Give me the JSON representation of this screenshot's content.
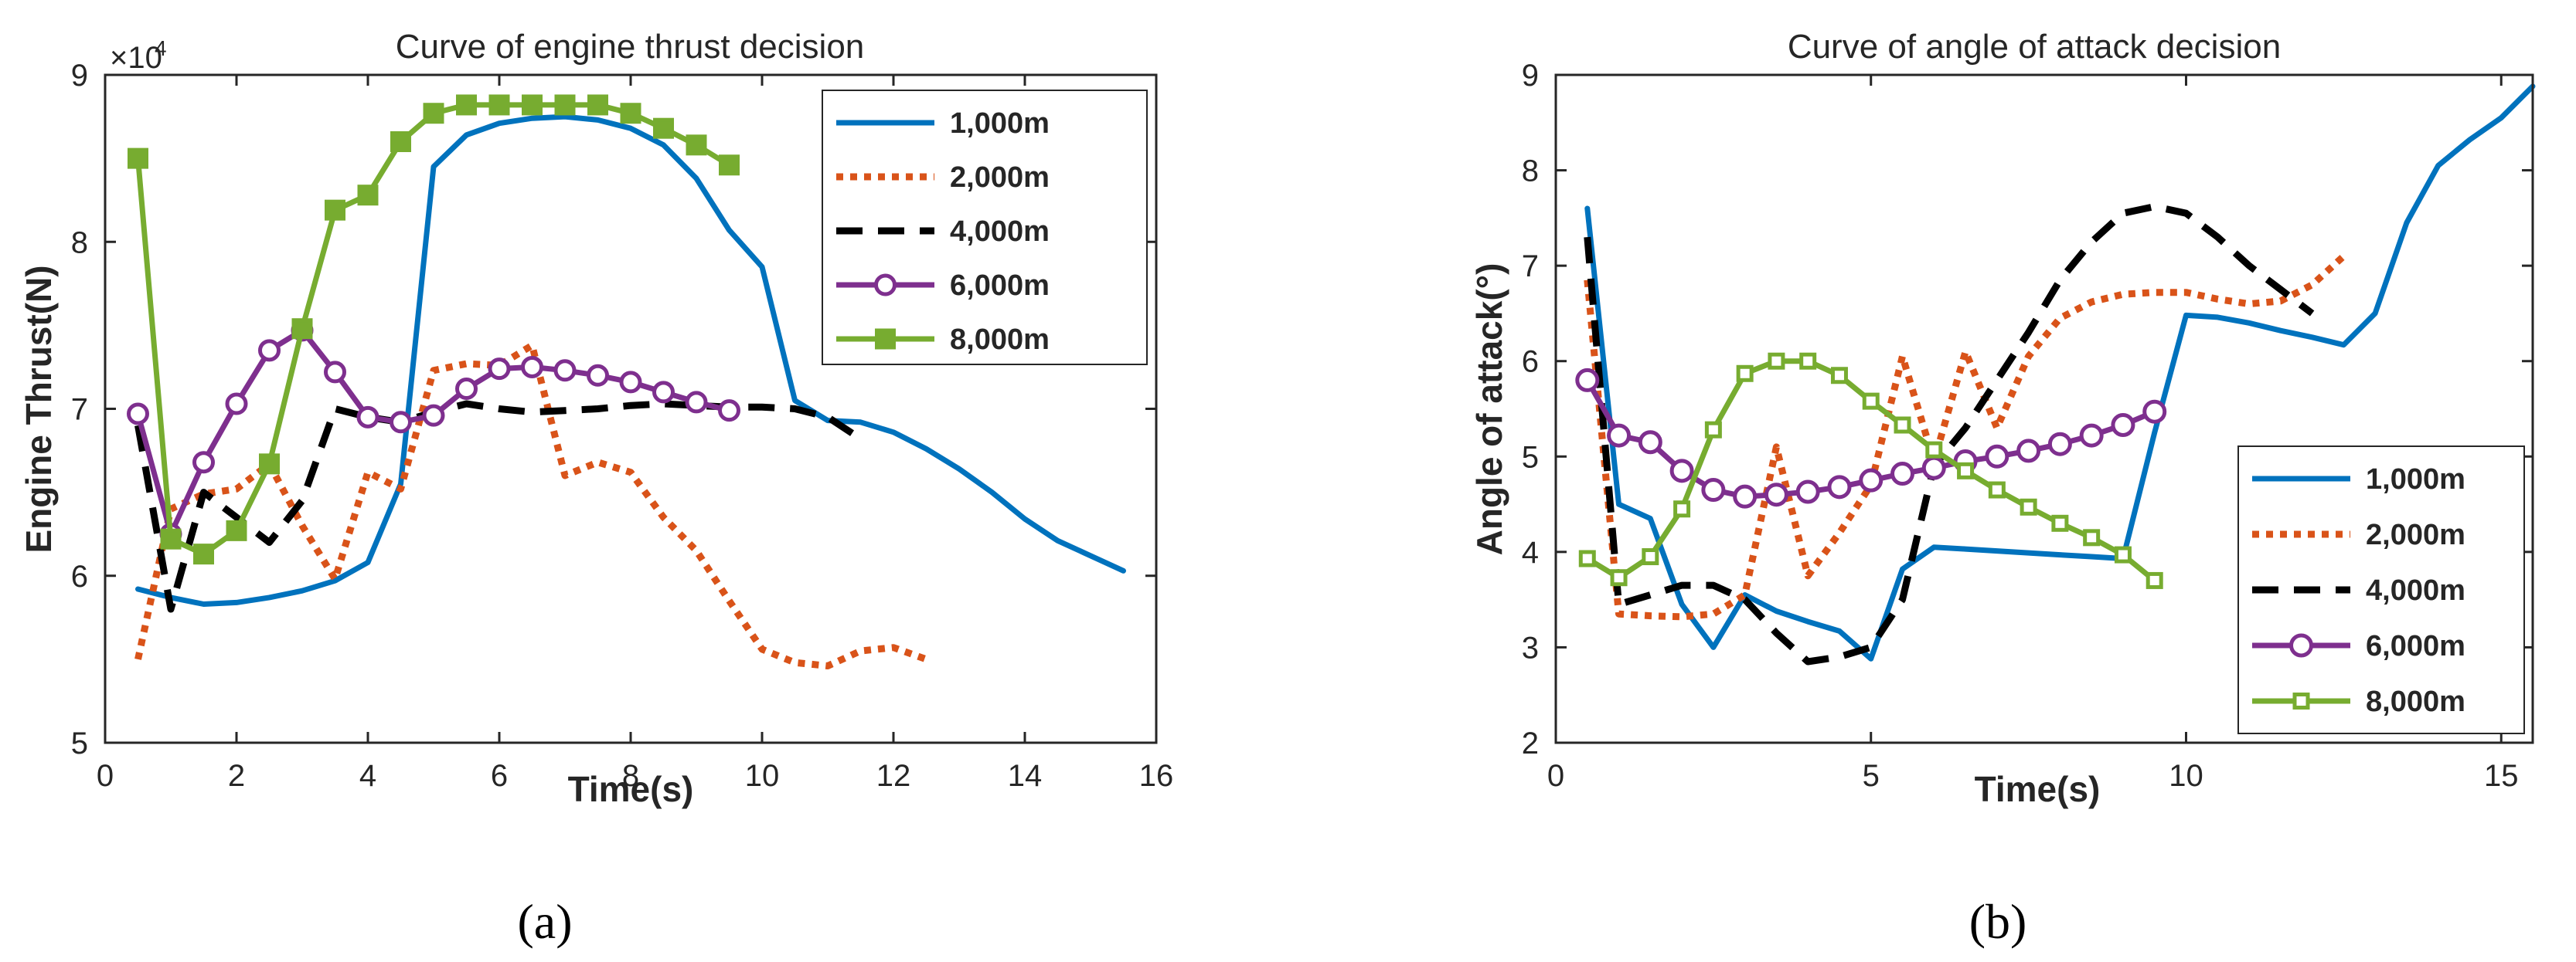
{
  "chart_data": [
    {
      "type": "line",
      "panel": "(a)",
      "title": "Curve of engine thrust decision",
      "xlabel": "Time(s)",
      "ylabel": "Engine Thrust(N)",
      "y_exponent_label": "×10",
      "y_exponent_power": "4",
      "xlim": [
        0,
        16
      ],
      "ylim": [
        5,
        9
      ],
      "xticks": [
        0,
        2,
        4,
        6,
        8,
        10,
        12,
        14,
        16
      ],
      "yticks": [
        5,
        6,
        7,
        8,
        9
      ],
      "legend_position": "top-right",
      "series": [
        {
          "name": "1,000m",
          "color": "#0072BD",
          "style": "solid",
          "marker": "none",
          "x": [
            0.5,
            1,
            1.5,
            2,
            2.5,
            3,
            3.5,
            4,
            4.5,
            5,
            5.5,
            6,
            6.5,
            7,
            7.5,
            8,
            8.5,
            9,
            9.5,
            10,
            10.5,
            11,
            11.5,
            12,
            12.5,
            13,
            13.5,
            14,
            14.5,
            15,
            15.5
          ],
          "y": [
            5.92,
            5.87,
            5.83,
            5.84,
            5.87,
            5.91,
            5.97,
            6.08,
            6.55,
            8.45,
            8.64,
            8.71,
            8.74,
            8.75,
            8.73,
            8.68,
            8.58,
            8.38,
            8.07,
            7.85,
            7.05,
            6.93,
            6.92,
            6.86,
            6.76,
            6.64,
            6.5,
            6.34,
            6.21,
            6.12,
            6.03
          ]
        },
        {
          "name": "2,000m",
          "color": "#D95319",
          "style": "dotted",
          "marker": "none",
          "x": [
            0.5,
            1,
            1.5,
            2,
            2.5,
            3,
            3.5,
            4,
            4.5,
            5,
            5.5,
            6,
            6.5,
            7,
            7.5,
            8,
            8.5,
            9,
            9.5,
            10,
            10.5,
            11,
            11.5,
            12,
            12.5
          ],
          "y": [
            5.5,
            6.4,
            6.49,
            6.52,
            6.67,
            6.3,
            5.98,
            6.62,
            6.52,
            7.23,
            7.27,
            7.26,
            7.38,
            6.6,
            6.68,
            6.62,
            6.35,
            6.15,
            5.85,
            5.56,
            5.48,
            5.46,
            5.55,
            5.57,
            5.5
          ]
        },
        {
          "name": "4,000m",
          "color": "#000000",
          "style": "dashed",
          "marker": "none",
          "x": [
            0.5,
            1,
            1.5,
            2,
            2.5,
            3,
            3.5,
            4,
            4.5,
            5,
            5.5,
            6,
            6.5,
            7,
            7.5,
            8,
            8.5,
            9,
            9.5,
            10,
            10.5,
            11,
            11.5
          ],
          "y": [
            6.9,
            5.8,
            6.5,
            6.35,
            6.2,
            6.45,
            7.0,
            6.95,
            6.92,
            6.98,
            7.03,
            7.0,
            6.98,
            6.99,
            7.0,
            7.02,
            7.03,
            7.02,
            7.01,
            7.01,
            7.0,
            6.95,
            6.82
          ]
        },
        {
          "name": "6,000m",
          "color": "#7E2F8E",
          "style": "solid",
          "marker": "circle",
          "x": [
            0.5,
            1,
            1.5,
            2,
            2.5,
            3,
            3.5,
            4,
            4.5,
            5,
            5.5,
            6,
            6.5,
            7,
            7.5,
            8,
            8.5,
            9,
            9.5
          ],
          "y": [
            6.97,
            6.25,
            6.68,
            7.03,
            7.35,
            7.47,
            7.22,
            6.95,
            6.92,
            6.96,
            7.12,
            7.24,
            7.25,
            7.23,
            7.2,
            7.16,
            7.1,
            7.04,
            6.99
          ]
        },
        {
          "name": "8,000m",
          "color": "#77AC30",
          "style": "solid",
          "marker": "square",
          "x": [
            0.5,
            1,
            1.5,
            2,
            2.5,
            3,
            3.5,
            4,
            4.5,
            5,
            5.5,
            6,
            6.5,
            7,
            7.5,
            8,
            8.5,
            9,
            9.5
          ],
          "y": [
            8.5,
            6.22,
            6.13,
            6.27,
            6.67,
            7.48,
            8.19,
            8.28,
            8.6,
            8.77,
            8.82,
            8.82,
            8.82,
            8.82,
            8.82,
            8.77,
            8.68,
            8.58,
            8.46
          ]
        }
      ]
    },
    {
      "type": "line",
      "panel": "(b)",
      "title": "Curve of angle of attack decision",
      "xlabel": "Time(s)",
      "ylabel": "Angle of attack(°)",
      "xlim": [
        0,
        15.5
      ],
      "ylim": [
        2,
        9
      ],
      "xticks": [
        0,
        5,
        10,
        15
      ],
      "yticks": [
        2,
        3,
        4,
        5,
        6,
        7,
        8,
        9
      ],
      "legend_position": "bottom-right",
      "series": [
        {
          "name": "1,000m",
          "color": "#0072BD",
          "style": "solid",
          "marker": "none",
          "x": [
            0.5,
            1,
            1.5,
            2,
            2.5,
            3,
            3.5,
            4,
            4.5,
            5,
            5.5,
            6,
            6.5,
            7,
            7.5,
            8,
            8.5,
            9,
            9.5,
            10,
            10.5,
            11,
            11.5,
            12,
            12.5,
            13,
            13.5,
            14,
            14.5,
            15,
            15.5
          ],
          "y": [
            7.6,
            4.5,
            4.35,
            3.45,
            3.0,
            3.55,
            3.38,
            3.27,
            3.17,
            2.88,
            3.82,
            4.05,
            4.03,
            4.01,
            3.99,
            3.97,
            3.95,
            3.93,
            5.25,
            6.48,
            6.46,
            6.4,
            6.32,
            6.25,
            6.17,
            6.5,
            7.45,
            8.05,
            8.32,
            8.55,
            8.88
          ]
        },
        {
          "name": "2,000m",
          "color": "#D95319",
          "style": "dotted",
          "marker": "none",
          "x": [
            0.5,
            1,
            1.5,
            2,
            2.5,
            3,
            3.5,
            4,
            4.5,
            5,
            5.5,
            6,
            6.5,
            7,
            7.5,
            8,
            8.5,
            9,
            9.5,
            10,
            10.5,
            11,
            11.5,
            12,
            12.5
          ],
          "y": [
            6.85,
            3.35,
            3.33,
            3.32,
            3.35,
            3.55,
            5.1,
            3.75,
            4.2,
            4.7,
            6.05,
            4.95,
            6.1,
            5.3,
            6.05,
            6.45,
            6.62,
            6.7,
            6.72,
            6.72,
            6.65,
            6.6,
            6.63,
            6.8,
            7.1
          ]
        },
        {
          "name": "4,000m",
          "color": "#000000",
          "style": "dashed",
          "marker": "none",
          "x": [
            0.5,
            1,
            1.5,
            2,
            2.5,
            3,
            3.5,
            4,
            4.5,
            5,
            5.5,
            6,
            6.5,
            7,
            7.5,
            8,
            8.5,
            9,
            9.5,
            10,
            10.5,
            11,
            11.5,
            12
          ],
          "y": [
            7.3,
            3.45,
            3.55,
            3.65,
            3.65,
            3.5,
            3.15,
            2.85,
            2.9,
            3.0,
            3.5,
            4.9,
            5.3,
            5.8,
            6.3,
            6.85,
            7.25,
            7.55,
            7.62,
            7.55,
            7.3,
            7.0,
            6.75,
            6.5
          ]
        },
        {
          "name": "6,000m",
          "color": "#7E2F8E",
          "style": "solid",
          "marker": "circle",
          "x": [
            0.5,
            1,
            1.5,
            2,
            2.5,
            3,
            3.5,
            4,
            4.5,
            5,
            5.5,
            6,
            6.5,
            7,
            7.5,
            8,
            8.5,
            9,
            9.5
          ],
          "y": [
            5.8,
            5.22,
            5.15,
            4.85,
            4.65,
            4.58,
            4.6,
            4.63,
            4.68,
            4.75,
            4.82,
            4.88,
            4.95,
            5.0,
            5.06,
            5.13,
            5.22,
            5.33,
            5.47
          ]
        },
        {
          "name": "8,000m",
          "color": "#77AC30",
          "style": "solid",
          "marker": "square",
          "x": [
            0.5,
            1,
            1.5,
            2,
            2.5,
            3,
            3.5,
            4,
            4.5,
            5,
            5.5,
            6,
            6.5,
            7,
            7.5,
            8,
            8.5,
            9,
            9.5
          ],
          "y": [
            3.93,
            3.73,
            3.95,
            4.45,
            5.28,
            5.87,
            6.0,
            6.0,
            5.85,
            5.58,
            5.33,
            5.07,
            4.85,
            4.65,
            4.47,
            4.3,
            4.15,
            3.97,
            3.7
          ]
        }
      ]
    }
  ]
}
